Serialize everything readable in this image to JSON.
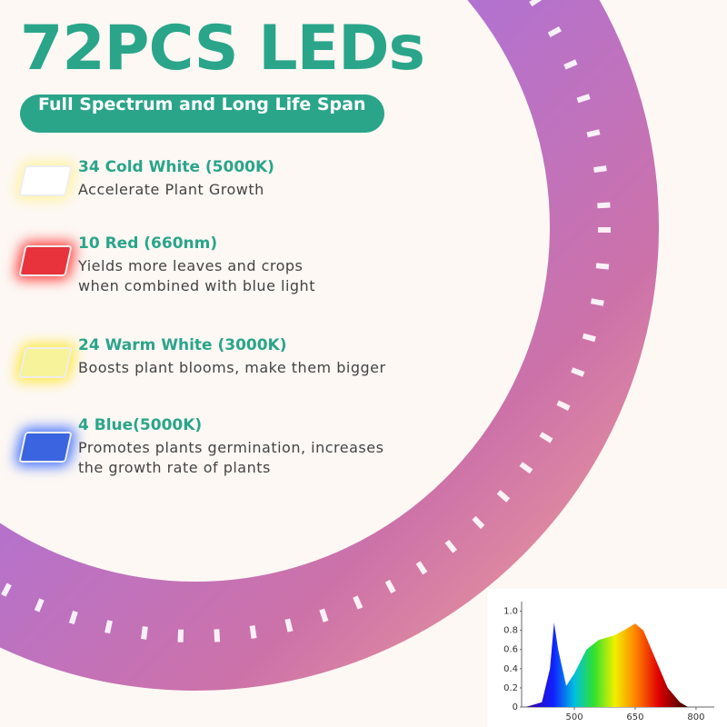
{
  "title": "72PCS LEDs",
  "subtitle": "Full Spectrum and Long Life Span",
  "items": [
    {
      "heading": "34 Cold White  (5000K)",
      "lines": [
        "Accelerate Plant Growth"
      ]
    },
    {
      "heading": "10 Red  (660nm)",
      "lines": [
        "Yields more leaves and crops",
        "when combined with blue light"
      ]
    },
    {
      "heading": "24 Warm White  (3000K)",
      "lines": [
        "Boosts plant blooms, make them bigger"
      ]
    },
    {
      "heading": "4 Blue(5000K)",
      "lines": [
        "Promotes plants germination, increases",
        "the growth rate of plants"
      ]
    }
  ],
  "chart_data": {
    "type": "area",
    "x": [
      380,
      420,
      440,
      450,
      460,
      480,
      500,
      530,
      560,
      600,
      630,
      650,
      670,
      700,
      730,
      760,
      780
    ],
    "values": [
      0,
      0.05,
      0.4,
      0.88,
      0.6,
      0.22,
      0.35,
      0.6,
      0.7,
      0.75,
      0.82,
      0.87,
      0.8,
      0.5,
      0.2,
      0.05,
      0
    ],
    "xlim": [
      370,
      845
    ],
    "ylim": [
      0,
      1.1
    ],
    "xticks": [
      500,
      650,
      800
    ],
    "yticks": [
      0,
      0.2,
      0.4,
      0.6,
      0.8,
      {
        "value": 1,
        "label": "1.0"
      }
    ]
  }
}
